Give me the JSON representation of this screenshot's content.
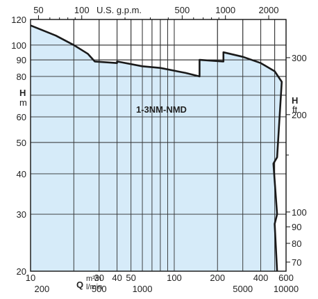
{
  "chart_data": {
    "type": "area",
    "model_label": "1-3NM-NMD",
    "x_axis": {
      "primary_label": "Q",
      "primary_unit": "m³/h",
      "secondary_unit": "l/min",
      "top_unit": "U.S. g.p.m.",
      "scale": "log",
      "range_m3h": [
        10,
        600
      ],
      "ticks_m3h": [
        10,
        30,
        40,
        50,
        100,
        200,
        400,
        600
      ],
      "ticks_lmin": [
        200,
        500,
        1000,
        5000,
        10000
      ],
      "ticks_gpm": [
        50,
        100,
        500,
        1000,
        2000
      ]
    },
    "y_axis": {
      "label": "H",
      "unit_left": "m",
      "unit_right": "ft",
      "scale": "log",
      "range_m": [
        20,
        120
      ],
      "ticks_m": [
        20,
        30,
        40,
        50,
        60,
        80,
        90,
        100,
        120
      ],
      "ticks_ft": [
        70,
        80,
        90,
        100,
        200,
        300
      ]
    },
    "envelope": {
      "fill": "#cfe8f8",
      "stroke": "#1a1a1a",
      "upper_boundary_m3h_m": [
        [
          10,
          115
        ],
        [
          15,
          107
        ],
        [
          20,
          100
        ],
        [
          25,
          94
        ],
        [
          28,
          89
        ],
        [
          40,
          88
        ],
        [
          40,
          89
        ],
        [
          60,
          86
        ],
        [
          80,
          85
        ],
        [
          120,
          82
        ],
        [
          150,
          80
        ],
        [
          150,
          90
        ],
        [
          220,
          89
        ],
        [
          220,
          95
        ],
        [
          300,
          92
        ],
        [
          400,
          88
        ],
        [
          500,
          83
        ],
        [
          560,
          77
        ]
      ],
      "right_boundary_m3h_m": [
        [
          560,
          77
        ],
        [
          520,
          45
        ],
        [
          490,
          43
        ],
        [
          520,
          30
        ],
        [
          500,
          28
        ],
        [
          520,
          20
        ]
      ]
    },
    "grid": true
  }
}
